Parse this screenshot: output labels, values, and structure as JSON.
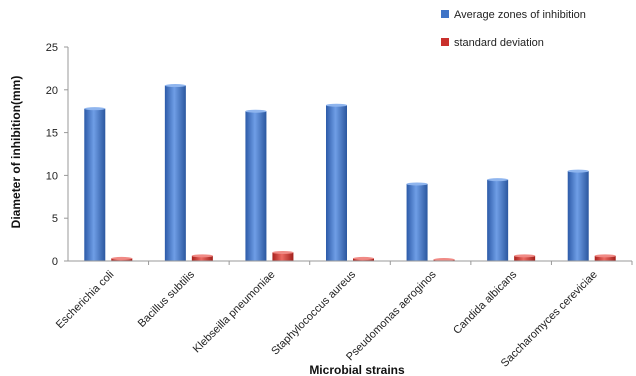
{
  "chart_data": {
    "type": "bar",
    "title": "",
    "xlabel": "Microbial strains",
    "ylabel": "Diameter of inhibition(mm)",
    "ylim": [
      0,
      25
    ],
    "yticks": [
      0,
      5,
      10,
      15,
      20,
      25
    ],
    "grid": false,
    "legend_position": "top-right",
    "categories": [
      "Escherichia coli",
      "Bacillus subtilis",
      "Klebseilla pneumoniae",
      "Staphylococcus aureus",
      "Pseudomonas aeroginos",
      "Candida albicans",
      "Saccharomyces cereviciae"
    ],
    "series": [
      {
        "name": "Average zones of inhibition",
        "color": "#3f74c7",
        "values": [
          17.8,
          20.5,
          17.5,
          18.2,
          9.0,
          9.5,
          10.5
        ]
      },
      {
        "name": "standard deviation",
        "color": "#c9302c",
        "values": [
          0.3,
          0.6,
          1.0,
          0.3,
          0.05,
          0.6,
          0.6
        ]
      }
    ]
  }
}
